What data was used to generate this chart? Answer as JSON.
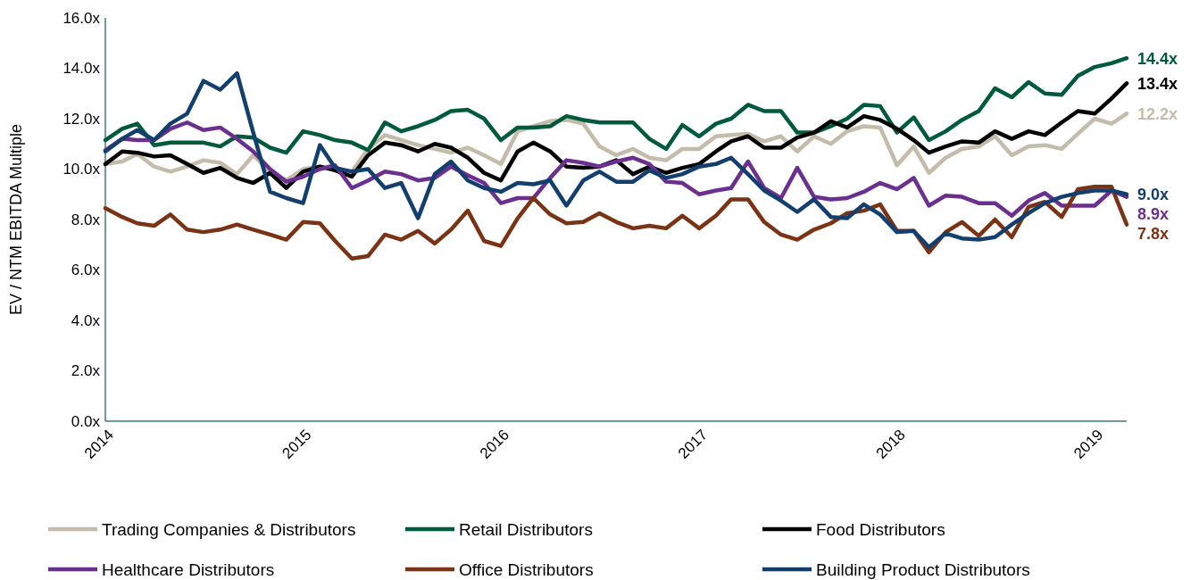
{
  "chart_data": {
    "type": "line",
    "ylabel": "EV / NTM EBITDA Multiple",
    "x": [
      "2014-01",
      "2014-02",
      "2014-03",
      "2014-04",
      "2014-05",
      "2014-06",
      "2014-07",
      "2014-08",
      "2014-09",
      "2014-10",
      "2014-11",
      "2014-12",
      "2015-01",
      "2015-02",
      "2015-03",
      "2015-04",
      "2015-05",
      "2015-06",
      "2015-07",
      "2015-08",
      "2015-09",
      "2015-10",
      "2015-11",
      "2015-12",
      "2016-01",
      "2016-02",
      "2016-03",
      "2016-04",
      "2016-05",
      "2016-06",
      "2016-07",
      "2016-08",
      "2016-09",
      "2016-10",
      "2016-11",
      "2016-12",
      "2017-01",
      "2017-02",
      "2017-03",
      "2017-04",
      "2017-05",
      "2017-06",
      "2017-07",
      "2017-08",
      "2017-09",
      "2017-10",
      "2017-11",
      "2017-12",
      "2018-01",
      "2018-02",
      "2018-03",
      "2018-04",
      "2018-05",
      "2018-06",
      "2018-07",
      "2018-08",
      "2018-09",
      "2018-10",
      "2018-11",
      "2018-12",
      "2019-01",
      "2019-02",
      "2019-03"
    ],
    "xlim": [
      "2014-01",
      "2019-03"
    ],
    "xticks": [
      "2014",
      "2015",
      "2016",
      "2017",
      "2018",
      "2019"
    ],
    "ylim": [
      0,
      16
    ],
    "yticks": [
      {
        "value": 0,
        "label": "0.0x"
      },
      {
        "value": 2,
        "label": "2.0x"
      },
      {
        "value": 4,
        "label": "4.0x"
      },
      {
        "value": 6,
        "label": "6.0x"
      },
      {
        "value": 8,
        "label": "8.0x"
      },
      {
        "value": 10,
        "label": "10.0x"
      },
      {
        "value": 12,
        "label": "12.0x"
      },
      {
        "value": 14,
        "label": "14.0x"
      },
      {
        "value": 16,
        "label": "16.0x"
      }
    ],
    "grid": false,
    "legend": "bottom",
    "marker": "none",
    "line_style": "solid",
    "series": [
      {
        "name": "Trading Companies & Distributors",
        "color": "#c4bcaa",
        "values": [
          10.2,
          10.3,
          10.6,
          10.1,
          9.9,
          10.1,
          10.35,
          10.25,
          9.8,
          10.55,
          9.9,
          9.55,
          10.0,
          10.1,
          10.0,
          9.9,
          10.8,
          11.35,
          11.15,
          10.95,
          10.8,
          10.65,
          10.85,
          10.55,
          10.2,
          11.5,
          11.7,
          11.9,
          11.95,
          11.8,
          10.9,
          10.55,
          10.8,
          10.45,
          10.35,
          10.8,
          10.8,
          11.3,
          11.35,
          11.4,
          11.1,
          11.3,
          10.7,
          11.3,
          11.0,
          11.5,
          11.7,
          11.65,
          10.15,
          10.9,
          9.85,
          10.45,
          10.8,
          10.9,
          11.3,
          10.55,
          10.9,
          10.95,
          10.8,
          11.4,
          12.0,
          11.8,
          12.2
        ],
        "value_labels": [
          null,
          null,
          null,
          null,
          null,
          null,
          null,
          null,
          null,
          null,
          null,
          null,
          null,
          null,
          null,
          null,
          null,
          null,
          null,
          null,
          null,
          null,
          null,
          null,
          null,
          null,
          null,
          null,
          null,
          null,
          null,
          null,
          null,
          null,
          null,
          null,
          null,
          null,
          null,
          null,
          null,
          null,
          null,
          null,
          null,
          null,
          null,
          null,
          null,
          null,
          null,
          null,
          null,
          null,
          null,
          null,
          null,
          null,
          null,
          null,
          null,
          null,
          "12.2x"
        ]
      },
      {
        "name": "Retail Distributors",
        "color": "#005a3c",
        "values": [
          11.15,
          11.6,
          11.8,
          10.95,
          11.05,
          11.05,
          11.05,
          10.9,
          11.3,
          11.25,
          10.85,
          10.65,
          11.5,
          11.35,
          11.15,
          11.05,
          10.75,
          11.85,
          11.5,
          11.7,
          11.95,
          12.3,
          12.35,
          12.0,
          11.15,
          11.65,
          11.65,
          11.7,
          12.1,
          11.95,
          11.85,
          11.85,
          11.85,
          11.2,
          10.8,
          11.75,
          11.3,
          11.8,
          12.0,
          12.55,
          12.3,
          12.3,
          11.45,
          11.45,
          11.7,
          12.0,
          12.55,
          12.5,
          11.45,
          12.05,
          11.15,
          11.5,
          11.95,
          12.3,
          13.2,
          12.85,
          13.45,
          13.0,
          12.95,
          13.7,
          14.05,
          14.2,
          14.4
        ],
        "value_labels": [
          null,
          null,
          null,
          null,
          null,
          null,
          null,
          null,
          null,
          null,
          null,
          null,
          null,
          null,
          null,
          null,
          null,
          null,
          null,
          null,
          null,
          null,
          null,
          null,
          null,
          null,
          null,
          null,
          null,
          null,
          null,
          null,
          null,
          null,
          null,
          null,
          null,
          null,
          null,
          null,
          null,
          null,
          null,
          null,
          null,
          null,
          null,
          null,
          null,
          null,
          null,
          null,
          null,
          null,
          null,
          null,
          null,
          null,
          null,
          null,
          null,
          null,
          "14.4x"
        ]
      },
      {
        "name": "Food Distributors",
        "color": "#000000",
        "values": [
          10.2,
          10.7,
          10.65,
          10.5,
          10.55,
          10.2,
          9.85,
          10.05,
          9.65,
          9.45,
          9.85,
          9.25,
          9.9,
          10.1,
          9.95,
          9.7,
          10.55,
          11.05,
          10.95,
          10.7,
          11.0,
          10.85,
          10.45,
          9.85,
          9.55,
          10.7,
          11.05,
          10.7,
          10.1,
          10.05,
          10.1,
          10.35,
          9.8,
          10.1,
          9.85,
          10.05,
          10.2,
          10.7,
          11.1,
          11.3,
          10.85,
          10.85,
          11.25,
          11.45,
          11.9,
          11.65,
          12.1,
          11.95,
          11.6,
          11.15,
          10.65,
          10.9,
          11.1,
          11.05,
          11.5,
          11.2,
          11.5,
          11.35,
          11.85,
          12.3,
          12.2,
          12.8,
          13.4
        ],
        "value_labels": [
          null,
          null,
          null,
          null,
          null,
          null,
          null,
          null,
          null,
          null,
          null,
          null,
          null,
          null,
          null,
          null,
          null,
          null,
          null,
          null,
          null,
          null,
          null,
          null,
          null,
          null,
          null,
          null,
          null,
          null,
          null,
          null,
          null,
          null,
          null,
          null,
          null,
          null,
          null,
          null,
          null,
          null,
          null,
          null,
          null,
          null,
          null,
          null,
          null,
          null,
          null,
          null,
          null,
          null,
          null,
          null,
          null,
          null,
          null,
          null,
          null,
          null,
          "13.4x"
        ]
      },
      {
        "name": "Healthcare Distributors",
        "color": "#6b2f8f",
        "values": [
          10.75,
          11.2,
          11.15,
          11.15,
          11.6,
          11.85,
          11.55,
          11.65,
          11.2,
          10.7,
          10.0,
          9.5,
          9.7,
          10.0,
          10.15,
          9.25,
          9.55,
          9.9,
          9.8,
          9.55,
          9.65,
          10.1,
          9.75,
          9.45,
          8.65,
          8.85,
          8.85,
          9.65,
          10.35,
          10.25,
          10.1,
          10.3,
          10.45,
          10.2,
          9.5,
          9.45,
          9.0,
          9.15,
          9.25,
          10.3,
          9.25,
          8.85,
          10.05,
          8.9,
          8.8,
          8.85,
          9.1,
          9.45,
          9.2,
          9.65,
          8.55,
          8.95,
          8.9,
          8.65,
          8.65,
          8.15,
          8.75,
          9.05,
          8.55,
          8.55,
          8.55,
          9.15,
          8.9
        ],
        "value_labels": [
          null,
          null,
          null,
          null,
          null,
          null,
          null,
          null,
          null,
          null,
          null,
          null,
          null,
          null,
          null,
          null,
          null,
          null,
          null,
          null,
          null,
          null,
          null,
          null,
          null,
          null,
          null,
          null,
          null,
          null,
          null,
          null,
          null,
          null,
          null,
          null,
          null,
          null,
          null,
          null,
          null,
          null,
          null,
          null,
          null,
          null,
          null,
          null,
          null,
          null,
          null,
          null,
          null,
          null,
          null,
          null,
          null,
          null,
          null,
          null,
          null,
          null,
          "8.9x"
        ]
      },
      {
        "name": "Office Distributors",
        "color": "#7a3314",
        "values": [
          8.45,
          8.1,
          7.85,
          7.75,
          8.2,
          7.6,
          7.5,
          7.6,
          7.8,
          7.6,
          7.4,
          7.2,
          7.9,
          7.85,
          7.15,
          6.45,
          6.55,
          7.4,
          7.2,
          7.55,
          7.05,
          7.6,
          8.35,
          7.15,
          6.95,
          8.05,
          8.85,
          8.2,
          7.85,
          7.9,
          8.25,
          7.9,
          7.65,
          7.75,
          7.65,
          8.15,
          7.65,
          8.15,
          8.8,
          8.8,
          7.9,
          7.4,
          7.2,
          7.6,
          7.85,
          8.25,
          8.35,
          8.6,
          7.55,
          7.55,
          6.7,
          7.5,
          7.9,
          7.35,
          8.0,
          7.3,
          8.5,
          8.7,
          8.1,
          9.2,
          9.3,
          9.3,
          7.8
        ],
        "value_labels": [
          null,
          null,
          null,
          null,
          null,
          null,
          null,
          null,
          null,
          null,
          null,
          null,
          null,
          null,
          null,
          null,
          null,
          null,
          null,
          null,
          null,
          null,
          null,
          null,
          null,
          null,
          null,
          null,
          null,
          null,
          null,
          null,
          null,
          null,
          null,
          null,
          null,
          null,
          null,
          null,
          null,
          null,
          null,
          null,
          null,
          null,
          null,
          null,
          null,
          null,
          null,
          null,
          null,
          null,
          null,
          null,
          null,
          null,
          null,
          null,
          null,
          null,
          "7.8x"
        ]
      },
      {
        "name": "Building Product Distributors",
        "color": "#123f6e",
        "values": [
          10.7,
          11.2,
          11.55,
          11.15,
          11.8,
          12.2,
          13.5,
          13.15,
          13.8,
          11.45,
          9.1,
          8.85,
          8.65,
          10.95,
          10.05,
          9.9,
          10.0,
          9.25,
          9.45,
          8.05,
          9.8,
          10.3,
          9.55,
          9.25,
          9.1,
          9.45,
          9.4,
          9.55,
          8.55,
          9.55,
          9.9,
          9.5,
          9.5,
          9.95,
          9.65,
          9.8,
          10.1,
          10.2,
          10.45,
          9.8,
          9.15,
          8.75,
          8.3,
          8.8,
          8.1,
          8.05,
          8.6,
          8.2,
          7.5,
          7.55,
          6.9,
          7.45,
          7.25,
          7.2,
          7.3,
          7.8,
          8.25,
          8.65,
          8.9,
          9.05,
          9.15,
          9.15,
          9.0
        ],
        "value_labels": [
          null,
          null,
          null,
          null,
          null,
          null,
          null,
          null,
          null,
          null,
          null,
          null,
          null,
          null,
          null,
          null,
          null,
          null,
          null,
          null,
          null,
          null,
          null,
          null,
          null,
          null,
          null,
          null,
          null,
          null,
          null,
          null,
          null,
          null,
          null,
          null,
          null,
          null,
          null,
          null,
          null,
          null,
          null,
          null,
          null,
          null,
          null,
          null,
          null,
          null,
          null,
          null,
          null,
          null,
          null,
          null,
          null,
          null,
          null,
          null,
          null,
          null,
          "9.0x"
        ]
      }
    ]
  }
}
